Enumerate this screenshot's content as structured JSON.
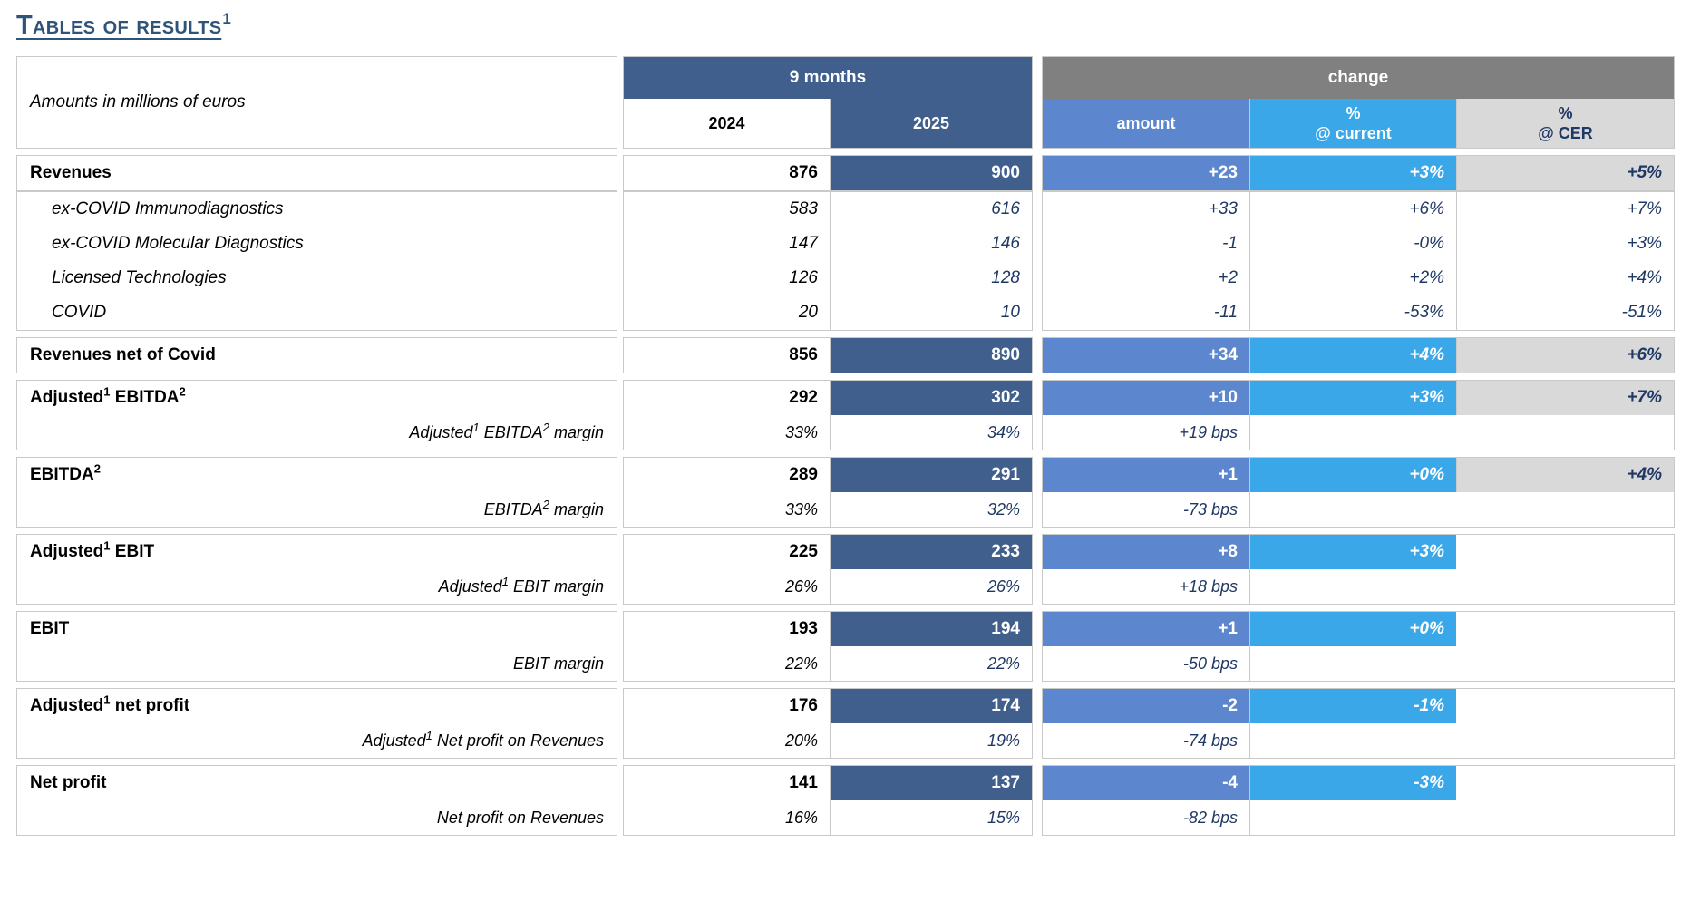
{
  "title": {
    "text": "Tables of results",
    "sup": "1"
  },
  "colors": {
    "dark_blue": "#405F8D",
    "medium_blue": "#5C86CD",
    "light_blue": "#3AA7E8",
    "cell_gray": "#D9D9D9",
    "header_gray": "#808080",
    "navy_text": "#1F3864",
    "border_gray": "#C9C9C9",
    "title_blue": "#2F5478"
  },
  "table": {
    "corner_label": "Amounts in millions of euros",
    "groups": {
      "period": "9 months",
      "change": "change"
    },
    "columns": {
      "y2024": "2024",
      "y2025": "2025",
      "amount": "amount",
      "pct_current_l1": "%",
      "pct_current_l2": "@ current",
      "pct_cer_l1": "%",
      "pct_cer_l2": "@ CER"
    },
    "blocks": [
      {
        "name": "revenues",
        "rows": [
          {
            "type": "main",
            "label": "Revenues",
            "v2024": "876",
            "v2025": "900",
            "amount": "+23",
            "pct_current": "+3%",
            "pct_cer": "+5%"
          }
        ]
      },
      {
        "name": "revenues-detail",
        "flush": true,
        "rows": [
          {
            "type": "sub",
            "label": "ex-COVID Immunodiagnostics",
            "v2024": "583",
            "v2025": "616",
            "amount": "+33",
            "pct_current": "+6%",
            "pct_cer": "+7%"
          },
          {
            "type": "sub",
            "label": "ex-COVID Molecular Diagnostics",
            "v2024": "147",
            "v2025": "146",
            "amount": "-1",
            "pct_current": "-0%",
            "pct_cer": "+3%"
          },
          {
            "type": "sub",
            "label": "Licensed Technologies",
            "v2024": "126",
            "v2025": "128",
            "amount": "+2",
            "pct_current": "+2%",
            "pct_cer": "+4%"
          },
          {
            "type": "sub",
            "label": "COVID",
            "v2024": "20",
            "v2025": "10",
            "amount": "-11",
            "pct_current": "-53%",
            "pct_cer": "-51%"
          }
        ]
      },
      {
        "name": "revenues-net-of-covid",
        "rows": [
          {
            "type": "main",
            "label": "Revenues net of Covid",
            "v2024": "856",
            "v2025": "890",
            "amount": "+34",
            "pct_current": "+4%",
            "pct_cer": "+6%"
          }
        ]
      },
      {
        "name": "adjusted-ebitda",
        "rows": [
          {
            "type": "main",
            "label": "Adjusted¹ EBITDA²",
            "v2024": "292",
            "v2025": "302",
            "amount": "+10",
            "pct_current": "+3%",
            "pct_cer": "+7%"
          },
          {
            "type": "margin",
            "label": "Adjusted¹ EBITDA² margin",
            "v2024": "33%",
            "v2025": "34%",
            "amount": "+19 bps"
          }
        ]
      },
      {
        "name": "ebitda",
        "rows": [
          {
            "type": "main",
            "label": "EBITDA²",
            "v2024": "289",
            "v2025": "291",
            "amount": "+1",
            "pct_current": "+0%",
            "pct_cer": "+4%"
          },
          {
            "type": "margin",
            "label": "EBITDA² margin",
            "v2024": "33%",
            "v2025": "32%",
            "amount": "-73 bps"
          }
        ]
      },
      {
        "name": "adjusted-ebit",
        "rows": [
          {
            "type": "main",
            "label": "Adjusted¹ EBIT",
            "v2024": "225",
            "v2025": "233",
            "amount": "+8",
            "pct_current": "+3%",
            "pct_cer": ""
          },
          {
            "type": "margin",
            "label": "Adjusted¹ EBIT margin",
            "v2024": "26%",
            "v2025": "26%",
            "amount": "+18 bps"
          }
        ]
      },
      {
        "name": "ebit",
        "rows": [
          {
            "type": "main",
            "label": "EBIT",
            "v2024": "193",
            "v2025": "194",
            "amount": "+1",
            "pct_current": "+0%",
            "pct_cer": ""
          },
          {
            "type": "margin",
            "label": "EBIT margin",
            "v2024": "22%",
            "v2025": "22%",
            "amount": "-50 bps"
          }
        ]
      },
      {
        "name": "adjusted-net-profit",
        "rows": [
          {
            "type": "main",
            "label": "Adjusted¹ net profit",
            "v2024": "176",
            "v2025": "174",
            "amount": "-2",
            "pct_current": "-1%",
            "pct_cer": ""
          },
          {
            "type": "margin",
            "label": "Adjusted¹ Net profit on Revenues",
            "v2024": "20%",
            "v2025": "19%",
            "amount": "-74 bps"
          }
        ]
      },
      {
        "name": "net-profit",
        "rows": [
          {
            "type": "main",
            "label": "Net profit",
            "v2024": "141",
            "v2025": "137",
            "amount": "-4",
            "pct_current": "-3%",
            "pct_cer": ""
          },
          {
            "type": "margin",
            "label": "Net profit on Revenues",
            "v2024": "16%",
            "v2025": "15%",
            "amount": "-82 bps"
          }
        ]
      }
    ]
  }
}
